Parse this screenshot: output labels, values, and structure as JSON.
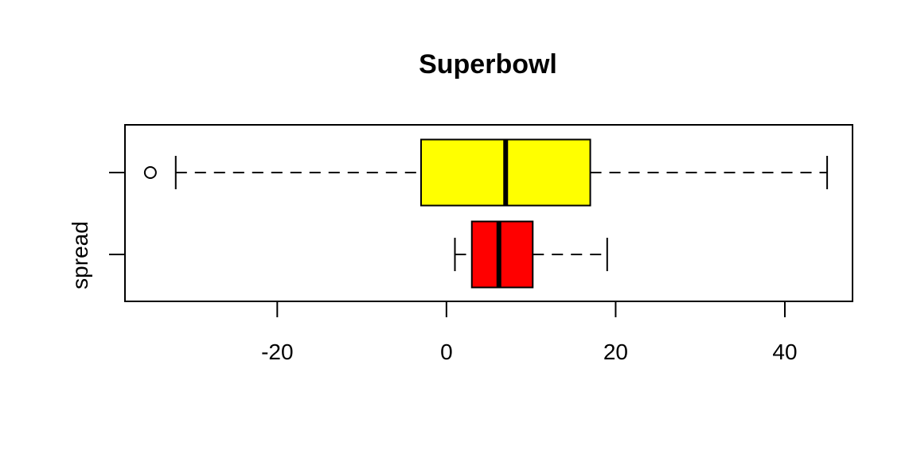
{
  "chart_data": {
    "type": "box",
    "orientation": "horizontal",
    "title": "Superbowl",
    "xlabel": "",
    "ylabel": "spread",
    "xlim": [
      -38,
      48
    ],
    "x_ticks": [
      -20,
      0,
      20,
      40
    ],
    "x_tick_labels": [
      "-20",
      "0",
      "20",
      "40"
    ],
    "grid": false,
    "boxes": [
      {
        "position": "top",
        "color": "#ffff00",
        "whisker_low": -32,
        "q1": -3,
        "median": 7,
        "q3": 17,
        "whisker_high": 45,
        "outliers": [
          -35
        ]
      },
      {
        "position": "bottom",
        "color": "#ff0000",
        "whisker_low": 1,
        "q1": 3,
        "median": 6.2,
        "q3": 10.2,
        "whisker_high": 19,
        "outliers": []
      }
    ]
  }
}
